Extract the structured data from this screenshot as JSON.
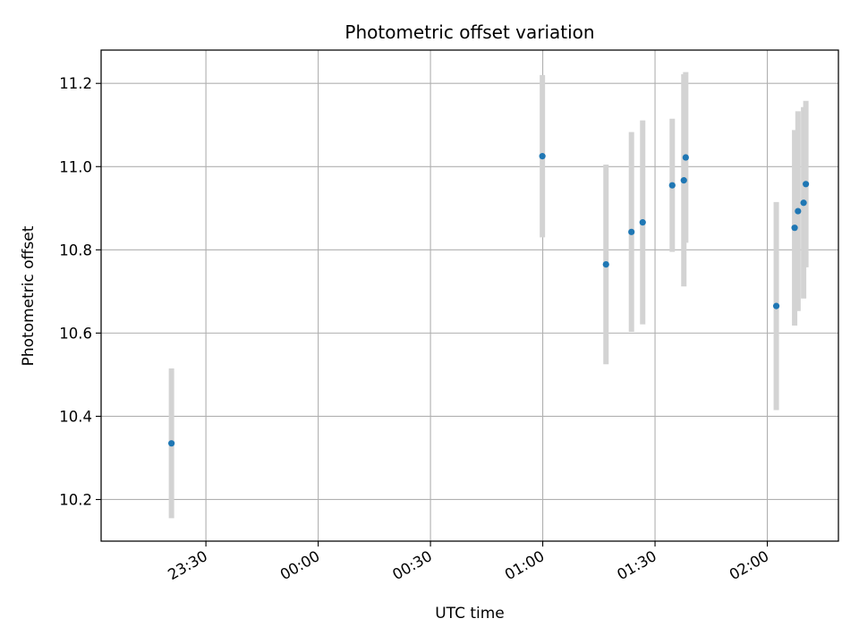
{
  "chart_data": {
    "type": "scatter",
    "title": "Photometric offset variation",
    "xlabel": "UTC time",
    "ylabel": "Photometric offset",
    "x_ticks": [
      "23:30",
      "00:00",
      "00:30",
      "01:00",
      "01:30",
      "02:00"
    ],
    "x_tick_values_min": [
      -30,
      0,
      30,
      60,
      90,
      120
    ],
    "x_range_min": [
      -58,
      139
    ],
    "y_ticks": [
      "10.2",
      "10.4",
      "10.6",
      "10.8",
      "11.0",
      "11.2"
    ],
    "y_tick_values": [
      10.2,
      10.4,
      10.6,
      10.8,
      11.0,
      11.2
    ],
    "ylim": [
      10.1,
      11.28
    ],
    "grid": true,
    "points": [
      {
        "t": "23:20.8",
        "x": -39.2,
        "y": 10.335,
        "err": 0.18
      },
      {
        "t": "00:59.9",
        "x": 59.9,
        "y": 11.025,
        "err": 0.195
      },
      {
        "t": "01:16.9",
        "x": 76.9,
        "y": 10.765,
        "err": 0.24
      },
      {
        "t": "01:23.7",
        "x": 83.7,
        "y": 10.843,
        "err": 0.24
      },
      {
        "t": "01:26.7",
        "x": 86.7,
        "y": 10.866,
        "err": 0.245
      },
      {
        "t": "01:34.6",
        "x": 94.6,
        "y": 10.955,
        "err": 0.16
      },
      {
        "t": "01:37.7",
        "x": 97.7,
        "y": 10.967,
        "err": 0.255
      },
      {
        "t": "01:38.2",
        "x": 98.2,
        "y": 11.022,
        "err": 0.205
      },
      {
        "t": "02:02.4",
        "x": 122.4,
        "y": 10.665,
        "err": 0.25
      },
      {
        "t": "02:07.3",
        "x": 127.3,
        "y": 10.853,
        "err": 0.235
      },
      {
        "t": "02:08.2",
        "x": 128.2,
        "y": 10.893,
        "err": 0.24
      },
      {
        "t": "02:09.7",
        "x": 129.7,
        "y": 10.913,
        "err": 0.23
      },
      {
        "t": "02:10.3",
        "x": 130.3,
        "y": 10.958,
        "err": 0.2
      }
    ],
    "colors": {
      "marker": "#1f77b4",
      "errorbar": "#d3d3d3",
      "grid": "#b0b0b0",
      "axes": "#000000"
    }
  }
}
